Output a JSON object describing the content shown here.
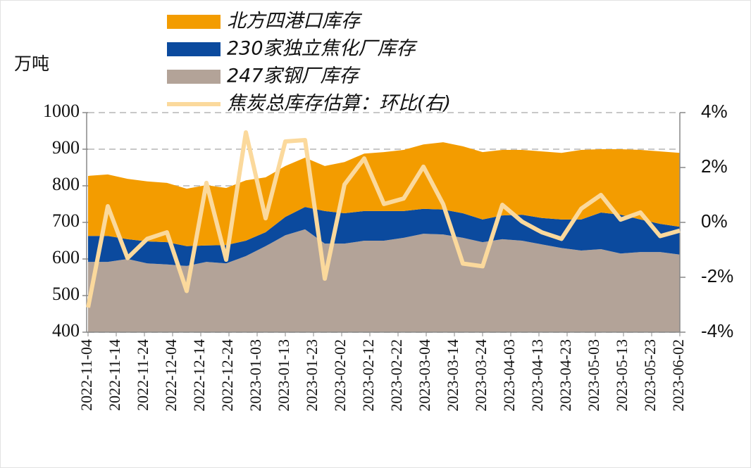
{
  "chart_data": {
    "type": "area",
    "y_label": "万吨",
    "x": [
      "2022-11-04",
      "2022-11-11",
      "2022-11-18",
      "2022-11-25",
      "2022-12-02",
      "2022-12-09",
      "2022-12-16",
      "2022-12-23",
      "2022-12-30",
      "2023-01-06",
      "2023-01-13",
      "2023-01-20",
      "2023-01-27",
      "2023-02-03",
      "2023-02-10",
      "2023-02-17",
      "2023-02-24",
      "2023-03-03",
      "2023-03-10",
      "2023-03-17",
      "2023-03-24",
      "2023-03-31",
      "2023-04-07",
      "2023-04-14",
      "2023-04-21",
      "2023-04-28",
      "2023-05-05",
      "2023-05-12",
      "2023-05-19",
      "2023-05-26",
      "2023-06-02"
    ],
    "xticks": [
      "2022-11-04",
      "2022-11-14",
      "2022-11-24",
      "2022-12-04",
      "2022-12-14",
      "2022-12-24",
      "2023-01-03",
      "2023-01-13",
      "2023-01-23",
      "2023-02-02",
      "2023-02-12",
      "2023-02-22",
      "2023-03-04",
      "2023-03-14",
      "2023-03-24",
      "2023-04-03",
      "2023-04-13",
      "2023-04-23",
      "2023-05-03",
      "2023-05-13",
      "2023-05-23",
      "2023-06-02"
    ],
    "series": [
      {
        "name": "247家钢厂库存",
        "type": "area",
        "color": "#b3a398",
        "values": [
          592,
          592,
          600,
          588,
          585,
          581,
          592,
          588,
          608,
          635,
          665,
          681,
          642,
          642,
          650,
          650,
          658,
          669,
          667,
          658,
          646,
          654,
          650,
          640,
          630,
          623,
          627,
          615,
          619,
          619,
          612
        ]
      },
      {
        "name": "230家独立焦化厂库存",
        "type": "area",
        "color": "#0b4a9e",
        "values": [
          71,
          71,
          54,
          60,
          61,
          54,
          45,
          50,
          42,
          38,
          50,
          61,
          89,
          83,
          81,
          81,
          73,
          68,
          68,
          67,
          62,
          65,
          71,
          72,
          78,
          85,
          100,
          106,
          89,
          77,
          76
        ]
      },
      {
        "name": "北方四港口库存",
        "type": "area",
        "color": "#f39c00",
        "values": [
          164,
          168,
          165,
          164,
          162,
          157,
          165,
          156,
          165,
          150,
          139,
          135,
          123,
          140,
          157,
          161,
          167,
          176,
          184,
          183,
          184,
          179,
          177,
          182,
          182,
          190,
          173,
          179,
          190,
          198,
          202
        ]
      },
      {
        "name": "焦炭总库存估算：环比(右)",
        "type": "line",
        "axis": "y2",
        "color": "#fbd99c",
        "values": [
          -3.1,
          0.59,
          -1.3,
          -0.6,
          -0.36,
          -2.5,
          1.44,
          -1.36,
          3.28,
          0.15,
          2.95,
          3.0,
          -2.05,
          1.38,
          2.33,
          0.67,
          0.87,
          2.03,
          0.67,
          -1.5,
          -1.6,
          0.64,
          0.03,
          -0.36,
          -0.6,
          0.5,
          1.0,
          0.1,
          0.36,
          -0.5,
          -0.3
        ]
      }
    ],
    "ylim": [
      400,
      1000
    ],
    "yticks": [
      400,
      500,
      600,
      700,
      800,
      900,
      1000
    ],
    "y2lim": [
      -4,
      4
    ],
    "y2ticks": [
      {
        "value": -4,
        "label": "-4%"
      },
      {
        "value": -2,
        "label": "-2%"
      },
      {
        "value": 0,
        "label": "0%"
      },
      {
        "value": 2,
        "label": "2%"
      },
      {
        "value": 4,
        "label": "4%"
      }
    ],
    "grid": true
  }
}
